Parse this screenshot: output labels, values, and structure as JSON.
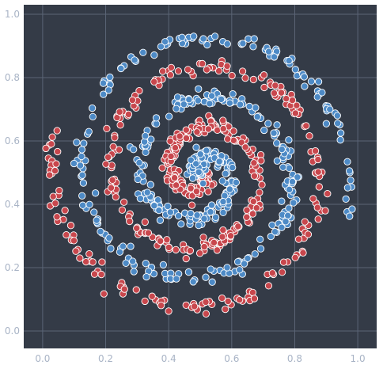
{
  "chart_data": {
    "type": "scatter",
    "title": "",
    "xlabel": "",
    "ylabel": "",
    "xlim": [
      -0.06,
      1.06
    ],
    "ylim": [
      -0.055,
      1.03
    ],
    "grid": true,
    "x_ticks": [
      "0.0",
      "0.2",
      "0.4",
      "0.6",
      "0.8",
      "1.0"
    ],
    "y_ticks": [
      "0.0",
      "0.2",
      "0.4",
      "0.6",
      "0.8",
      "1.0"
    ],
    "spiral": {
      "center": [
        0.5,
        0.5
      ],
      "r_per_radian": 0.03003,
      "theta_start": 0.1,
      "theta_end": 16.0,
      "points_per_series": 480,
      "jitter": 0.012
    },
    "series": [
      {
        "name": "",
        "color": "#c8474d",
        "phase": 0
      },
      {
        "name": "",
        "color": "#4d8ac6",
        "phase": 3.14159
      }
    ],
    "colors": {
      "plot_background": "#343b47",
      "grid": "#5b6576",
      "tick_text": "#a9b4c6",
      "marker_edge": "#ffffff"
    }
  }
}
